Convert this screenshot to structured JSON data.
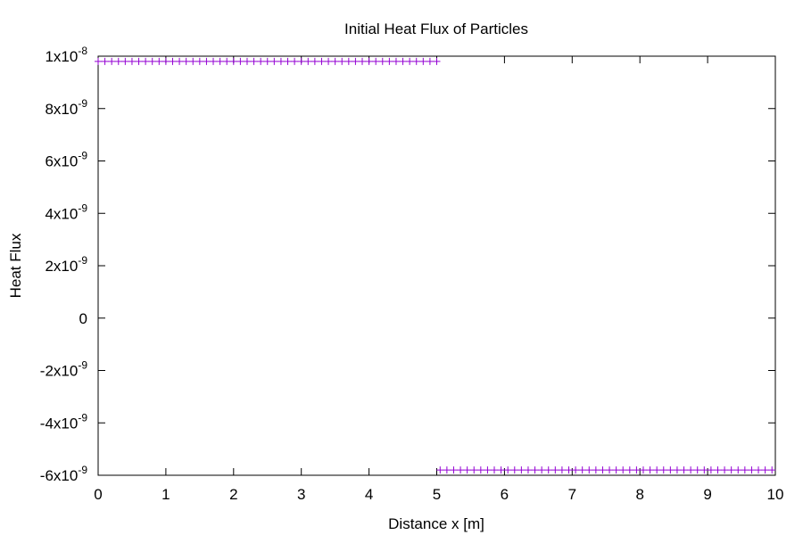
{
  "chart_data": {
    "type": "scatter",
    "title": "Initial Heat Flux of Particles",
    "xlabel": "Distance x [m]",
    "ylabel": "Heat Flux",
    "xlim": [
      0,
      10
    ],
    "ylim": [
      -6e-09,
      1e-08
    ],
    "x_ticks": [
      {
        "value": 0,
        "label": "0"
      },
      {
        "value": 1,
        "label": "1"
      },
      {
        "value": 2,
        "label": "2"
      },
      {
        "value": 3,
        "label": "3"
      },
      {
        "value": 4,
        "label": "4"
      },
      {
        "value": 5,
        "label": "5"
      },
      {
        "value": 6,
        "label": "6"
      },
      {
        "value": 7,
        "label": "7"
      },
      {
        "value": 8,
        "label": "8"
      },
      {
        "value": 9,
        "label": "9"
      },
      {
        "value": 10,
        "label": "10"
      }
    ],
    "y_ticks": [
      {
        "value": 1e-08,
        "mantissa": "1x10",
        "exponent": "-8"
      },
      {
        "value": 8e-09,
        "mantissa": "8x10",
        "exponent": "-9"
      },
      {
        "value": 6e-09,
        "mantissa": "6x10",
        "exponent": "-9"
      },
      {
        "value": 4e-09,
        "mantissa": "4x10",
        "exponent": "-9"
      },
      {
        "value": 2e-09,
        "mantissa": "2x10",
        "exponent": "-9"
      },
      {
        "value": 0,
        "mantissa": "0",
        "exponent": ""
      },
      {
        "value": -2e-09,
        "mantissa": "-2x10",
        "exponent": "-9"
      },
      {
        "value": -4e-09,
        "mantissa": "-4x10",
        "exponent": "-9"
      },
      {
        "value": -6e-09,
        "mantissa": "-6x10",
        "exponent": "-9"
      }
    ],
    "grid": false,
    "legend": "none",
    "marker": "plus",
    "series": [
      {
        "color": "#9400d3",
        "segments": [
          {
            "x_start": 0.0,
            "x_end": 4.95,
            "x_step": 0.1,
            "y": 9.8e-09
          },
          {
            "x_start": 5.05,
            "x_end": 9.95,
            "x_step": 0.1,
            "y": -5.8e-09
          }
        ]
      }
    ]
  }
}
